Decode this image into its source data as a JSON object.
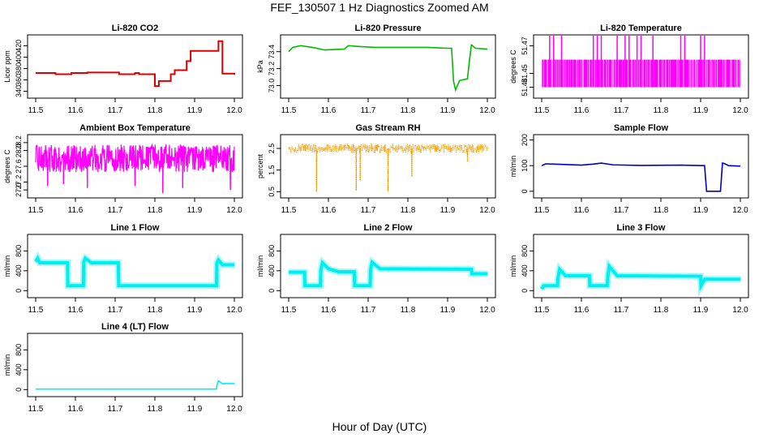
{
  "figure": {
    "title": "FEF_130507  1 Hz Diagnostics Zoomed AM",
    "xlabel": "Hour of Day (UTC)"
  },
  "chart_data": [
    {
      "type": "line",
      "title": "Li-820 CO2",
      "ylabel": "Licor ppm",
      "color": "#dd0000",
      "xlim": [
        11.5,
        12.0
      ],
      "ylim": [
        335,
        432
      ],
      "xticks": [
        "11.5",
        "11.6",
        "11.7",
        "11.8",
        "11.9",
        "12.0"
      ],
      "yticks": [
        {
          "v": 340,
          "label": "340"
        },
        {
          "v": 360,
          "label": "360"
        },
        {
          "v": 380,
          "label": "380"
        },
        {
          "v": 400,
          "label": "400"
        },
        {
          "v": 420,
          "label": "420"
        }
      ],
      "style": "step",
      "x": [
        11.5,
        11.55,
        11.59,
        11.63,
        11.71,
        11.75,
        11.76,
        11.8,
        11.81,
        11.84,
        11.85,
        11.88,
        11.89,
        11.96,
        11.97,
        12.0
      ],
      "y": [
        372,
        370,
        372,
        373,
        370,
        372,
        370,
        349,
        358,
        370,
        377,
        393,
        411,
        428,
        371,
        369
      ]
    },
    {
      "type": "line",
      "title": "Li-820 Pressure",
      "ylabel": "kPa",
      "color": "#00bb00",
      "xlim": [
        11.5,
        12.0
      ],
      "ylim": [
        72.9,
        73.55
      ],
      "xticks": [
        "11.5",
        "11.6",
        "11.7",
        "11.8",
        "11.9",
        "12.0"
      ],
      "yticks": [
        {
          "v": 73.0,
          "label": "73.0"
        },
        {
          "v": 73.2,
          "label": "73.2"
        },
        {
          "v": 73.4,
          "label": "73.4"
        }
      ],
      "style": "line",
      "x": [
        11.5,
        11.51,
        11.53,
        11.56,
        11.59,
        11.64,
        11.65,
        11.68,
        11.72,
        11.76,
        11.8,
        11.85,
        11.9,
        11.91,
        11.915,
        11.92,
        11.93,
        11.95,
        11.955,
        11.96,
        11.97,
        12.0
      ],
      "y": [
        73.4,
        73.45,
        73.47,
        73.45,
        73.42,
        73.43,
        73.47,
        73.46,
        73.45,
        73.45,
        73.45,
        73.45,
        73.44,
        73.44,
        73.05,
        72.95,
        73.06,
        73.08,
        73.3,
        73.48,
        73.44,
        73.43
      ]
    },
    {
      "type": "line",
      "title": "Li-820 Temperature",
      "ylabel": "degrees C",
      "color": "#ff00ff",
      "xlim": [
        11.5,
        12.0
      ],
      "ylim": [
        51.435,
        51.475
      ],
      "xticks": [
        "11.5",
        "11.6",
        "11.7",
        "11.8",
        "11.9",
        "12.0"
      ],
      "yticks": [
        {
          "v": 51.44,
          "label": "51.44"
        },
        {
          "v": 51.45,
          "label": "51.45"
        },
        {
          "v": 51.47,
          "label": "51.47"
        }
      ],
      "style": "band",
      "band": [
        51.44,
        51.46
      ],
      "spikes": [
        11.52,
        11.53,
        11.55,
        11.63,
        11.64,
        11.65,
        11.69,
        11.71,
        11.72,
        11.74,
        11.75,
        11.78,
        11.85,
        11.86,
        11.9,
        11.91
      ]
    },
    {
      "type": "line",
      "title": "Ambient Box Temperature",
      "ylabel": "degrees C",
      "color": "#ff00ff",
      "xlim": [
        11.5,
        12.0
      ],
      "ylim": [
        26.9,
        28.3
      ],
      "xticks": [
        "11.5",
        "11.6",
        "11.7",
        "11.8",
        "11.9",
        "12.0"
      ],
      "yticks": [
        {
          "v": 27.0,
          "label": "27.0"
        },
        {
          "v": 27.2,
          "label": "27.2"
        },
        {
          "v": 27.6,
          "label": "27.6"
        },
        {
          "v": 28.0,
          "label": "28.0"
        },
        {
          "v": 28.2,
          "label": "28.2"
        }
      ],
      "style": "noise",
      "center": 27.8,
      "spread": 0.35,
      "dips": [
        {
          "x": 11.53,
          "y": 27.1
        },
        {
          "x": 11.57,
          "y": 27.15
        },
        {
          "x": 11.63,
          "y": 27.05
        },
        {
          "x": 11.75,
          "y": 27.1
        },
        {
          "x": 11.82,
          "y": 26.92
        },
        {
          "x": 11.87,
          "y": 27.05
        },
        {
          "x": 11.99,
          "y": 27.0
        }
      ]
    },
    {
      "type": "scatter",
      "title": "Gas Stream RH",
      "ylabel": "percent",
      "color": "#ee9900",
      "xlim": [
        11.5,
        12.0
      ],
      "ylim": [
        0.4,
        2.95
      ],
      "xticks": [
        "11.5",
        "11.6",
        "11.7",
        "11.8",
        "11.9",
        "12.0"
      ],
      "yticks": [
        {
          "v": 0.5,
          "label": "0.5"
        },
        {
          "v": 1.5,
          "label": "1.5"
        },
        {
          "v": 2.5,
          "label": "2.5"
        }
      ],
      "style": "noise",
      "center": 2.5,
      "spread": 0.22,
      "dips": [
        {
          "x": 11.57,
          "y": 0.5
        },
        {
          "x": 11.67,
          "y": 0.55
        },
        {
          "x": 11.68,
          "y": 1.0
        },
        {
          "x": 11.75,
          "y": 0.5
        },
        {
          "x": 11.81,
          "y": 1.2
        },
        {
          "x": 11.95,
          "y": 1.9
        }
      ]
    },
    {
      "type": "line",
      "title": "Sample Flow",
      "ylabel": "ml/min",
      "color": "#0000cc",
      "xlim": [
        11.5,
        12.0
      ],
      "ylim": [
        -10,
        205
      ],
      "xticks": [
        "11.5",
        "11.6",
        "11.7",
        "11.8",
        "11.9",
        "12.0"
      ],
      "yticks": [
        {
          "v": 0,
          "label": "0"
        },
        {
          "v": 100,
          "label": "100"
        },
        {
          "v": 200,
          "label": "200"
        }
      ],
      "style": "line",
      "x": [
        11.5,
        11.51,
        11.53,
        11.6,
        11.63,
        11.65,
        11.68,
        11.75,
        11.85,
        11.91,
        11.915,
        11.95,
        11.955,
        11.96,
        11.97,
        12.0
      ],
      "y": [
        100,
        107,
        106,
        102,
        106,
        110,
        103,
        101,
        102,
        100,
        0,
        0,
        110,
        108,
        100,
        98
      ]
    },
    {
      "type": "line",
      "title": "Line 1 Flow",
      "ylabel": "ml/min",
      "color": "#00eeee",
      "xlim": [
        11.5,
        12.0
      ],
      "ylim": [
        -60,
        1050
      ],
      "xticks": [
        "11.5",
        "11.6",
        "11.7",
        "11.8",
        "11.9",
        "12.0"
      ],
      "yticks": [
        {
          "v": 0,
          "label": "0"
        },
        {
          "v": 400,
          "label": "400"
        },
        {
          "v": 800,
          "label": "800"
        }
      ],
      "style": "line",
      "thick": 1,
      "x": [
        11.5,
        11.505,
        11.51,
        11.58,
        11.581,
        11.62,
        11.621,
        11.625,
        11.64,
        11.708,
        11.709,
        11.955,
        11.956,
        11.96,
        11.97,
        12.0
      ],
      "y": [
        580,
        650,
        560,
        560,
        100,
        100,
        580,
        650,
        560,
        560,
        100,
        100,
        560,
        620,
        520,
        520
      ]
    },
    {
      "type": "line",
      "title": "Line 2 Flow",
      "ylabel": "ml/min",
      "color": "#00eeee",
      "xlim": [
        11.5,
        12.0
      ],
      "ylim": [
        -60,
        1050
      ],
      "xticks": [
        "11.5",
        "11.6",
        "11.7",
        "11.8",
        "11.9",
        "12.0"
      ],
      "yticks": [
        {
          "v": 0,
          "label": "0"
        },
        {
          "v": 400,
          "label": "400"
        },
        {
          "v": 800,
          "label": "800"
        }
      ],
      "style": "line",
      "thick": 1,
      "x": [
        11.5,
        11.54,
        11.541,
        11.58,
        11.581,
        11.585,
        11.6,
        11.625,
        11.665,
        11.666,
        11.705,
        11.706,
        11.71,
        11.73,
        11.96,
        11.961,
        12.0
      ],
      "y": [
        370,
        370,
        100,
        100,
        410,
        560,
        440,
        380,
        380,
        100,
        100,
        420,
        570,
        440,
        430,
        340,
        340
      ]
    },
    {
      "type": "line",
      "title": "Line 3 Flow",
      "ylabel": "ml/min",
      "color": "#00eeee",
      "xlim": [
        11.5,
        12.0
      ],
      "ylim": [
        -60,
        1050
      ],
      "xticks": [
        "11.5",
        "11.6",
        "11.7",
        "11.8",
        "11.9",
        "12.0"
      ],
      "yticks": [
        {
          "v": 0,
          "label": "0"
        },
        {
          "v": 400,
          "label": "400"
        },
        {
          "v": 800,
          "label": "800"
        }
      ],
      "style": "line",
      "thick": 1,
      "x": [
        11.5,
        11.505,
        11.54,
        11.541,
        11.545,
        11.56,
        11.62,
        11.621,
        11.665,
        11.666,
        11.67,
        11.69,
        11.9,
        11.901,
        11.91,
        12.0
      ],
      "y": [
        30,
        100,
        100,
        250,
        430,
        300,
        300,
        100,
        100,
        250,
        490,
        300,
        290,
        100,
        230,
        230
      ]
    },
    {
      "type": "line",
      "title": "Line 4 (LT) Flow",
      "ylabel": "ml/min",
      "color": "#00eeee",
      "xlim": [
        11.5,
        12.0
      ],
      "ylim": [
        -60,
        1050
      ],
      "xticks": [
        "11.5",
        "11.6",
        "11.7",
        "11.8",
        "11.9",
        "12.0"
      ],
      "yticks": [
        {
          "v": 0,
          "label": "0"
        },
        {
          "v": 400,
          "label": "400"
        },
        {
          "v": 800,
          "label": "800"
        }
      ],
      "style": "line",
      "thick": 0,
      "x": [
        11.5,
        11.955,
        11.956,
        11.96,
        11.97,
        12.0
      ],
      "y": [
        10,
        10,
        80,
        180,
        120,
        120
      ]
    }
  ]
}
